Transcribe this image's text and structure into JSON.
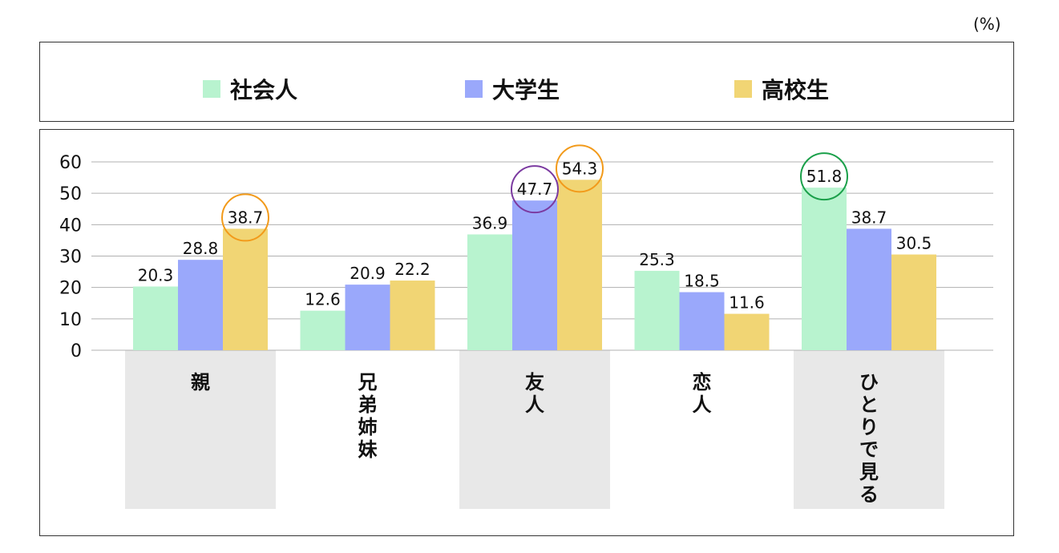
{
  "unit_label": "(%)",
  "colors": {
    "社会人": "#b8f3cf",
    "大学生": "#9aa8fb",
    "高校生": "#f1d574",
    "category_band": "#e8e8e8",
    "grid": "#b0b0b0",
    "highlight_orange": "#f29a1a",
    "highlight_purple": "#7b3aa0",
    "highlight_green": "#1aa04a"
  },
  "chart_data": {
    "type": "bar",
    "categories": [
      "親",
      "兄弟姉妹",
      "友人",
      "恋人",
      "ひとりで見る"
    ],
    "series": [
      {
        "name": "社会人",
        "values": [
          20.3,
          12.6,
          36.9,
          25.3,
          51.8
        ]
      },
      {
        "name": "大学生",
        "values": [
          28.8,
          20.9,
          47.7,
          18.5,
          38.7
        ]
      },
      {
        "name": "高校生",
        "values": [
          38.7,
          22.2,
          54.3,
          11.6,
          30.5
        ]
      }
    ],
    "ylim": [
      0,
      60
    ],
    "yticks": [
      0,
      10,
      20,
      30,
      40,
      50,
      60
    ],
    "grid": true,
    "legend_position": "top",
    "highlighted": [
      {
        "category": "親",
        "series": "高校生",
        "color": "orange"
      },
      {
        "category": "友人",
        "series": "大学生",
        "color": "purple"
      },
      {
        "category": "友人",
        "series": "高校生",
        "color": "orange"
      },
      {
        "category": "ひとりで見る",
        "series": "社会人",
        "color": "green"
      }
    ]
  }
}
